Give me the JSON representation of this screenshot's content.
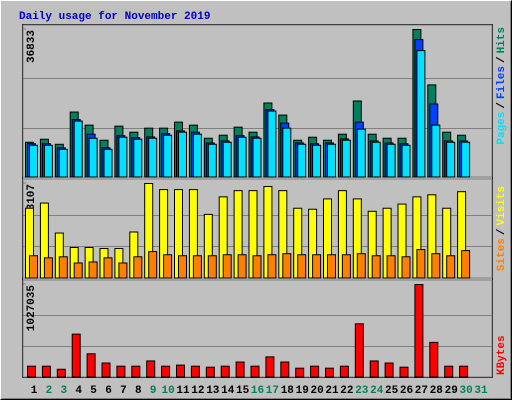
{
  "title": "Daily usage for November 2019",
  "legend_separator": "/",
  "chart_data": [
    {
      "type": "bar",
      "ylim": [
        0,
        36833
      ],
      "yticks": [
        36833
      ],
      "grid": true,
      "series": [
        {
          "name": "Hits",
          "color": "#00805c",
          "values": [
            8771,
            9523,
            8270,
            16289,
            13031,
            9272,
            12781,
            11277,
            12279,
            12279,
            13783,
            13031,
            9773,
            10525,
            12530,
            11277,
            18544,
            15537,
            9272,
            10024,
            9272,
            10776,
            19046,
            10776,
            9773,
            9773,
            36833,
            23055,
            11277,
            10525,
            null
          ]
        },
        {
          "name": "Files",
          "color": "#0040ff",
          "values": [
            8400,
            8400,
            7400,
            14400,
            10776,
            7400,
            10400,
            9900,
            10100,
            10900,
            11600,
            11277,
            8600,
            9100,
            10400,
            10100,
            16900,
            13532,
            8600,
            8400,
            8600,
            9600,
            13783,
            9100,
            8600,
            8400,
            34332,
            18294,
            9100,
            9100,
            null
          ]
        },
        {
          "name": "Pages",
          "color": "#00e0ff",
          "values": [
            8019,
            8019,
            7017,
            14034,
            9773,
            7017,
            10024,
            9523,
            9773,
            10525,
            11277,
            10776,
            8270,
            8771,
            10024,
            9773,
            16540,
            12279,
            8270,
            8019,
            8270,
            9272,
            12029,
            8771,
            8270,
            8019,
            31576,
            13031,
            8771,
            8771,
            null
          ]
        }
      ]
    },
    {
      "type": "bar",
      "ylim": [
        0,
        3107
      ],
      "yticks": [
        3107
      ],
      "grid": true,
      "series": [
        {
          "name": "Visits",
          "color": "#ffff00",
          "values": [
            2298,
            2467,
            1487,
            1014,
            1014,
            980,
            980,
            1521,
            3107,
            2907,
            2907,
            2907,
            2096,
            2670,
            2873,
            2873,
            3008,
            2873,
            2298,
            2265,
            2603,
            2873,
            2603,
            2197,
            2298,
            2434,
            2670,
            2738,
            2298,
            2839,
            null
          ]
        },
        {
          "name": "Sites",
          "color": "#ff8000",
          "values": [
            744,
            676,
            710,
            507,
            541,
            676,
            507,
            710,
            879,
            777,
            744,
            744,
            744,
            777,
            777,
            744,
            777,
            811,
            777,
            777,
            777,
            777,
            811,
            744,
            744,
            710,
            946,
            811,
            744,
            913,
            null
          ]
        }
      ]
    },
    {
      "type": "bar",
      "ylim": [
        0,
        1027035
      ],
      "yticks": [
        1027035
      ],
      "grid": true,
      "categories": [
        "1",
        "2",
        "3",
        "4",
        "5",
        "6",
        "7",
        "8",
        "9",
        "10",
        "11",
        "12",
        "13",
        "14",
        "15",
        "16",
        "17",
        "18",
        "19",
        "20",
        "21",
        "22",
        "23",
        "24",
        "25",
        "26",
        "27",
        "28",
        "29",
        "30",
        "31"
      ],
      "category_colors": [
        "#000000",
        "#00805c",
        "#00805c",
        "#000000",
        "#000000",
        "#000000",
        "#000000",
        "#000000",
        "#00805c",
        "#00805c",
        "#000000",
        "#000000",
        "#000000",
        "#000000",
        "#000000",
        "#00805c",
        "#00805c",
        "#000000",
        "#000000",
        "#000000",
        "#000000",
        "#000000",
        "#00805c",
        "#00805c",
        "#000000",
        "#000000",
        "#000000",
        "#000000",
        "#000000",
        "#00805c",
        "#00805c"
      ],
      "series": [
        {
          "name": "KBytes",
          "color": "#ff0000",
          "values": [
            125000,
            125000,
            91000,
            479000,
            262000,
            160000,
            125000,
            125000,
            183000,
            125000,
            137000,
            125000,
            114000,
            125000,
            171000,
            125000,
            228000,
            171000,
            103000,
            125000,
            103000,
            125000,
            593000,
            183000,
            160000,
            114000,
            1027035,
            388000,
            125000,
            125000,
            null
          ]
        }
      ]
    }
  ]
}
